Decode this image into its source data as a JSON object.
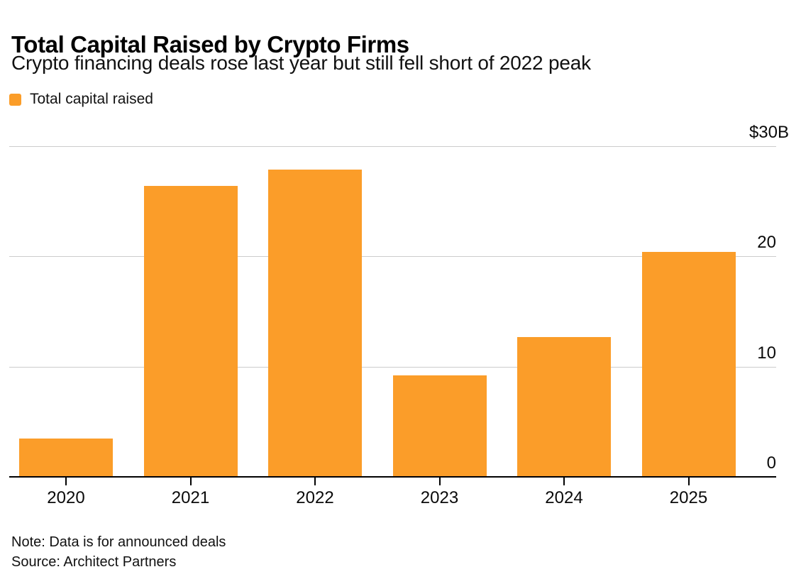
{
  "header": {
    "title": "Total Capital Raised by Crypto Firms",
    "subtitle": "Crypto financing deals rose last year but still fell short of 2022 peak"
  },
  "legend": {
    "label": "Total capital raised",
    "swatch_color": "#FB9D29"
  },
  "chart_data": {
    "type": "bar",
    "title": "Total Capital Raised by Crypto Firms",
    "subtitle": "Crypto financing deals rose last year but still fell short of 2022 peak",
    "series_name": "Total capital raised",
    "unit": "USD billions",
    "categories": [
      "2020",
      "2021",
      "2022",
      "2023",
      "2024",
      "2025"
    ],
    "values": [
      3.5,
      26.4,
      27.9,
      9.2,
      12.7,
      20.4
    ],
    "ylim": [
      0,
      30
    ],
    "yticks": [
      {
        "value": 0,
        "label": "0"
      },
      {
        "value": 10,
        "label": "10"
      },
      {
        "value": 20,
        "label": "20"
      },
      {
        "value": 30,
        "label": "$30B"
      }
    ],
    "bar_color": "#FB9D29",
    "grid": "horizontal",
    "legend_position": "top-left",
    "axis_label_side": "right"
  },
  "footer": {
    "note": "Note: Data is for announced deals",
    "source": "Source: Architect Partners"
  }
}
